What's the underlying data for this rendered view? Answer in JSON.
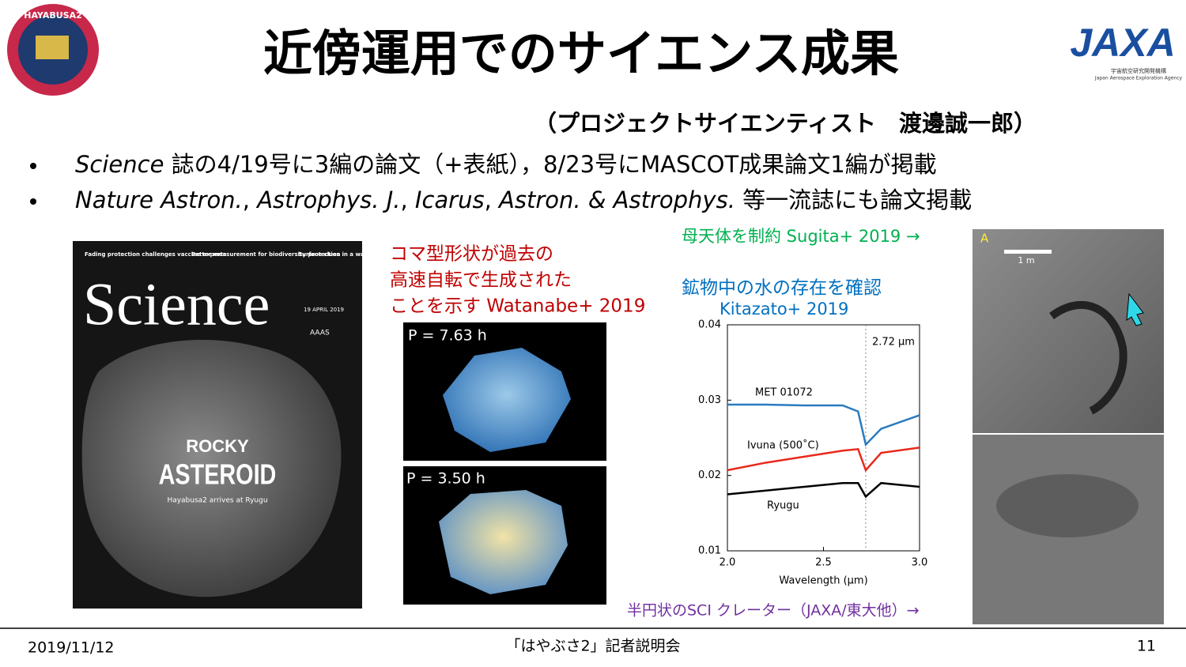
{
  "header": {
    "title": "近傍運用でのサイエンス成果",
    "subtitle": "（プロジェクトサイエンティスト　渡邊誠一郎）",
    "mission_logo": "HAYABUSA2",
    "agency_logo": "JAXA",
    "agency_name_ja": "宇宙航空研究開発機構",
    "agency_name_en": "Japan Aerospace Exploration Agency"
  },
  "bullets": [
    [
      {
        "text": "Science",
        "italic": true
      },
      {
        "text": " 誌の4/19号に3編の論文（+表紙），8/23号にMASCOT成果論文1編が掲載",
        "italic": false
      }
    ],
    [
      {
        "text": "Nature Astron.",
        "italic": true
      },
      {
        "text": ", ",
        "italic": false
      },
      {
        "text": "Astrophys. J.",
        "italic": true
      },
      {
        "text": ", ",
        "italic": false
      },
      {
        "text": "Icarus",
        "italic": true
      },
      {
        "text": ", ",
        "italic": false
      },
      {
        "text": "Astron. & Astrophys.",
        "italic": true
      },
      {
        "text": " 等一流誌にも論文掲載",
        "italic": false
      }
    ]
  ],
  "science_cover": {
    "masthead": "Science",
    "teasers": [
      "Fading protection challenges vaccine experts",
      "Better measurement for biodiversity protection",
      "Surface clues in a water cluster"
    ],
    "issue": "19 APRIL 2019",
    "publisher": "AAAS",
    "headline_1": "ROCKY",
    "headline_2": "ASTEROID",
    "deck": "Hayabusa2 arrives at Ryugu"
  },
  "spin_result": {
    "caption": [
      "コマ型形状が過去の",
      "高速自転で生成された",
      "ことを示す Watanabe+ 2019"
    ],
    "panels": [
      "P = 7.63 h",
      "P = 3.50 h"
    ]
  },
  "parent_body": {
    "caption": "母天体を制約 Sugita+ 2019 →",
    "panel_label": "A",
    "scale": "1 m"
  },
  "water": {
    "caption": "鉱物中の水の存在を確認",
    "reference": "Kitazato+ 2019"
  },
  "crater": {
    "caption": "半円状のSCI クレーター（JAXA/東大他）→"
  },
  "spectrum": {
    "type": "line",
    "x_label": "Wavelength (μm)",
    "x": [
      2.0,
      2.2,
      2.4,
      2.6,
      2.68,
      2.72,
      2.8,
      3.0
    ],
    "series": [
      {
        "name": "MET 01072",
        "color": "#2a7bbf",
        "values": [
          0.0294,
          0.0294,
          0.0293,
          0.0293,
          0.0285,
          0.0241,
          0.0262,
          0.028
        ]
      },
      {
        "name": "Ivuna (500˚C)",
        "color": "#e8291c",
        "values": [
          0.0207,
          0.0217,
          0.0225,
          0.0233,
          0.0235,
          0.0207,
          0.023,
          0.0237
        ]
      },
      {
        "name": "Ryugu",
        "color": "#000000",
        "values": [
          0.0175,
          0.018,
          0.0185,
          0.019,
          0.019,
          0.0172,
          0.019,
          0.0185
        ]
      }
    ],
    "marker": {
      "value": 2.72,
      "label": "2.72 μm"
    },
    "xlim": [
      2.0,
      3.0
    ],
    "xticks": [
      {
        "value": 2.0,
        "label": "2.0"
      },
      {
        "value": 2.5,
        "label": "2.5"
      },
      {
        "value": 3.0,
        "label": "3.0"
      }
    ],
    "ylim": [
      0.01,
      0.04
    ],
    "yticks": [
      0.01,
      0.02,
      0.03,
      0.04
    ]
  },
  "footer": {
    "date": "2019/11/12",
    "event": "「はやぶさ2」記者説明会",
    "page": "11"
  }
}
